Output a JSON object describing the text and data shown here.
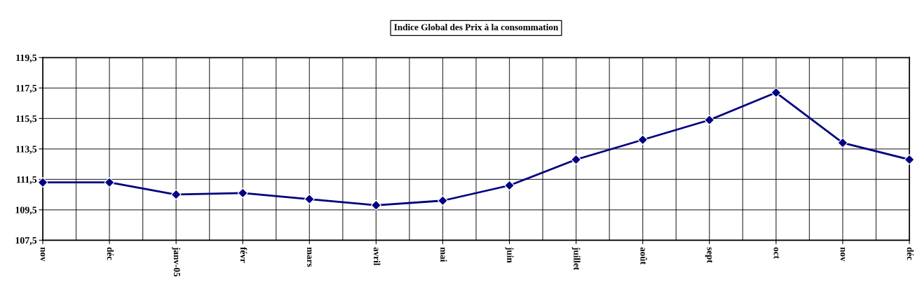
{
  "chart_data": {
    "type": "line",
    "title": "Indice Global des Prix à la consommation",
    "categories": [
      "nov",
      "déc",
      "janv-05",
      "févr",
      "mars",
      "avril",
      "mai",
      "juin",
      "juillet",
      "août",
      "sept",
      "oct",
      "nov",
      "déc"
    ],
    "series": [
      {
        "color": "#000080",
        "values": [
          111.3,
          111.3,
          110.5,
          110.6,
          110.2,
          109.8,
          110.1,
          111.1,
          112.8,
          114.1,
          115.4,
          117.2,
          113.9,
          112.8
        ]
      }
    ],
    "ylim": [
      107.5,
      119.5
    ],
    "yticks": [
      {
        "value": 107.5,
        "label": "107,5"
      },
      {
        "value": 109.5,
        "label": "109,5"
      },
      {
        "value": 111.5,
        "label": "111,5"
      },
      {
        "value": 113.5,
        "label": "113,5"
      },
      {
        "value": 115.5,
        "label": "115,5"
      },
      {
        "value": 117.5,
        "label": "117,5"
      },
      {
        "value": 119.5,
        "label": "119,5"
      }
    ],
    "grid": true,
    "marker": "diamond",
    "line_style": "solid"
  }
}
